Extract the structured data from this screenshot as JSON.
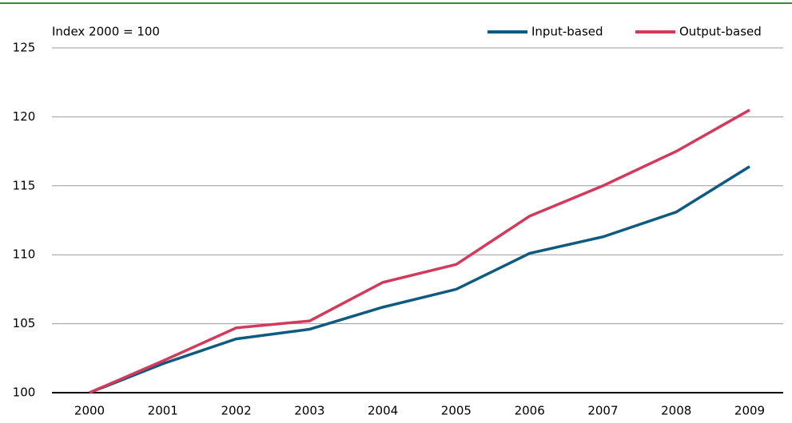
{
  "chart_data": {
    "type": "line",
    "y_label": "Index 2000 = 100",
    "categories": [
      "2000",
      "2001",
      "2002",
      "2003",
      "2004",
      "2005",
      "2006",
      "2007",
      "2008",
      "2009"
    ],
    "series": [
      {
        "name": "Input-based",
        "color": "#0e5a80",
        "values": [
          100,
          102.1,
          103.9,
          104.6,
          106.2,
          107.5,
          110.1,
          111.3,
          113.1,
          116.4
        ]
      },
      {
        "name": "Output-based",
        "color": "#d2395b",
        "values": [
          100,
          102.3,
          104.7,
          105.2,
          108.0,
          109.3,
          112.8,
          115.0,
          117.5,
          120.5
        ]
      }
    ],
    "ylim": [
      100,
      125
    ],
    "yticks": [
      100,
      105,
      110,
      115,
      120,
      125
    ],
    "grid": true,
    "legend": "top-right"
  }
}
